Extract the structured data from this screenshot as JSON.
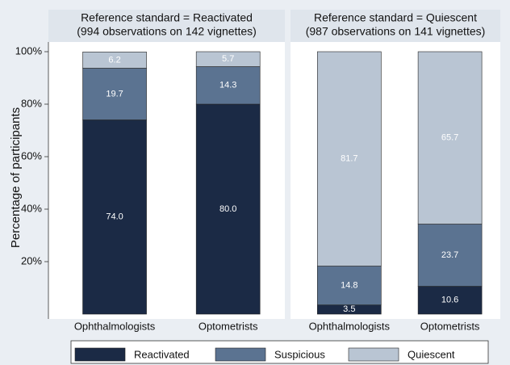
{
  "chart_data": [
    {
      "type": "bar",
      "stacked": true,
      "title": "Reference standard = Reactivated",
      "subtitle": "(994 observations on 142 vignettes)",
      "ylabel": "Percentage of participants",
      "categories": [
        "Ophthalmologists",
        "Optometrists"
      ],
      "ylim": [
        0,
        100
      ],
      "yticks": [
        {
          "value": 20,
          "label": "20%"
        },
        {
          "value": 40,
          "label": "40%"
        },
        {
          "value": 60,
          "label": "60%"
        },
        {
          "value": 80,
          "label": "80%"
        },
        {
          "value": 100,
          "label": "100%"
        }
      ],
      "series": [
        {
          "name": "Reactivated",
          "color": "#1b2a45",
          "values": [
            74.0,
            80.0
          ],
          "value_labels": [
            "74.0",
            "80.0"
          ]
        },
        {
          "name": "Suspicious",
          "color": "#5b7391",
          "values": [
            19.7,
            14.3
          ],
          "value_labels": [
            "19.7",
            "14.3"
          ]
        },
        {
          "name": "Quiescent",
          "color": "#b9c5d3",
          "values": [
            6.2,
            5.7
          ],
          "value_labels": [
            "6.2",
            "5.7"
          ]
        }
      ]
    },
    {
      "type": "bar",
      "stacked": true,
      "title": "Reference standard = Quiescent",
      "subtitle": "(987 observations on 141 vignettes)",
      "categories": [
        "Ophthalmologists",
        "Optometrists"
      ],
      "ylim": [
        0,
        100
      ],
      "series": [
        {
          "name": "Reactivated",
          "color": "#1b2a45",
          "values": [
            3.5,
            10.6
          ],
          "value_labels": [
            "3.5",
            "10.6"
          ]
        },
        {
          "name": "Suspicious",
          "color": "#5b7391",
          "values": [
            14.8,
            23.7
          ],
          "value_labels": [
            "14.8",
            "23.7"
          ]
        },
        {
          "name": "Quiescent",
          "color": "#b9c5d3",
          "values": [
            81.7,
            65.7
          ],
          "value_labels": [
            "81.7",
            "65.7"
          ]
        }
      ]
    }
  ]
}
